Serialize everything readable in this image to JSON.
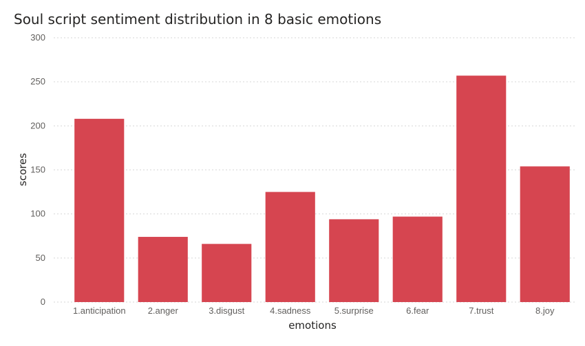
{
  "chart_data": {
    "type": "bar",
    "title": "Soul script sentiment distribution in 8 basic emotions",
    "xlabel": "emotions",
    "ylabel": "scores",
    "categories": [
      "1.anticipation",
      "2.anger",
      "3.disgust",
      "4.sadness",
      "5.surprise",
      "6.fear",
      "7.trust",
      "8.joy"
    ],
    "values": [
      208,
      74,
      66,
      125,
      94,
      97,
      257,
      154
    ],
    "ylim": [
      0,
      300
    ],
    "yticks": [
      "0",
      "50",
      "100",
      "150",
      "200",
      "250",
      "300"
    ],
    "grid": true,
    "legend": "none",
    "bar_color": "#d64550"
  }
}
